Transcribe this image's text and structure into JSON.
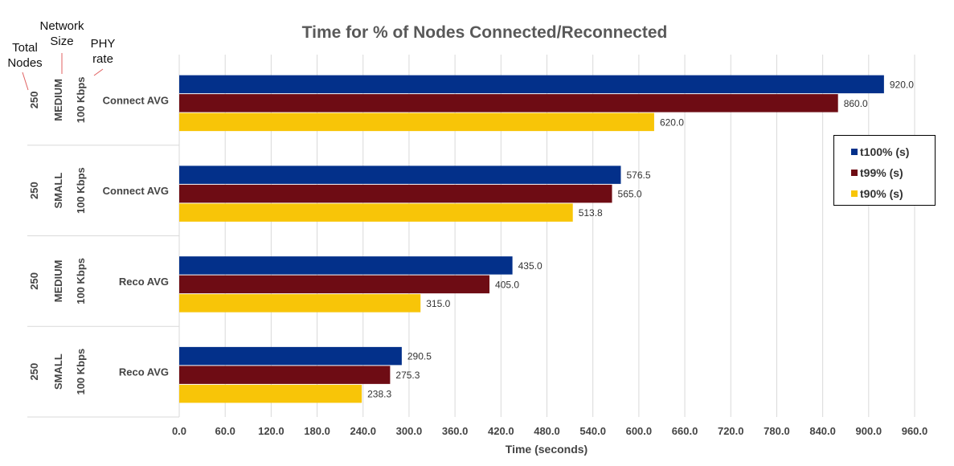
{
  "chart_data": {
    "type": "bar",
    "orientation": "horizontal",
    "title": "Time for % of Nodes Connected/Reconnected",
    "xlabel": "Time (seconds)",
    "ylabel": "",
    "xlim": [
      0,
      960
    ],
    "x_ticks": [
      "0.0",
      "60.0",
      "120.0",
      "180.0",
      "240.0",
      "300.0",
      "360.0",
      "420.0",
      "480.0",
      "540.0",
      "600.0",
      "660.0",
      "720.0",
      "780.0",
      "840.0",
      "900.0",
      "960.0"
    ],
    "grid": "vertical",
    "legend_position": "right",
    "header_labels": {
      "total_nodes": "Total Nodes",
      "network_size": "Network Size",
      "phy_rate": "PHY rate"
    },
    "categories": [
      {
        "label": "Connect AVG",
        "total_nodes": "250",
        "network_size": "MEDIUM",
        "phy_rate": "100 Kbps"
      },
      {
        "label": "Connect AVG",
        "total_nodes": "250",
        "network_size": "SMALL",
        "phy_rate": "100 Kbps"
      },
      {
        "label": "Reco AVG",
        "total_nodes": "250",
        "network_size": "MEDIUM",
        "phy_rate": "100 Kbps"
      },
      {
        "label": "Reco AVG",
        "total_nodes": "250",
        "network_size": "SMALL",
        "phy_rate": "100 Kbps"
      }
    ],
    "series": [
      {
        "name": "t100% (s)",
        "color": "#03308A",
        "values": [
          920.0,
          576.5,
          435.0,
          290.5
        ],
        "labels": [
          "920.0",
          "576.5",
          "435.0",
          "290.5"
        ]
      },
      {
        "name": "t99% (s)",
        "color": "#6E0C14",
        "values": [
          860.0,
          565.0,
          405.0,
          275.3
        ],
        "labels": [
          "860.0",
          "565.0",
          "405.0",
          "275.3"
        ]
      },
      {
        "name": "t90% (s)",
        "color": "#F8C508",
        "values": [
          620.0,
          513.8,
          315.0,
          238.3
        ],
        "labels": [
          "620.0",
          "513.8",
          "315.0",
          "238.3"
        ]
      }
    ]
  }
}
